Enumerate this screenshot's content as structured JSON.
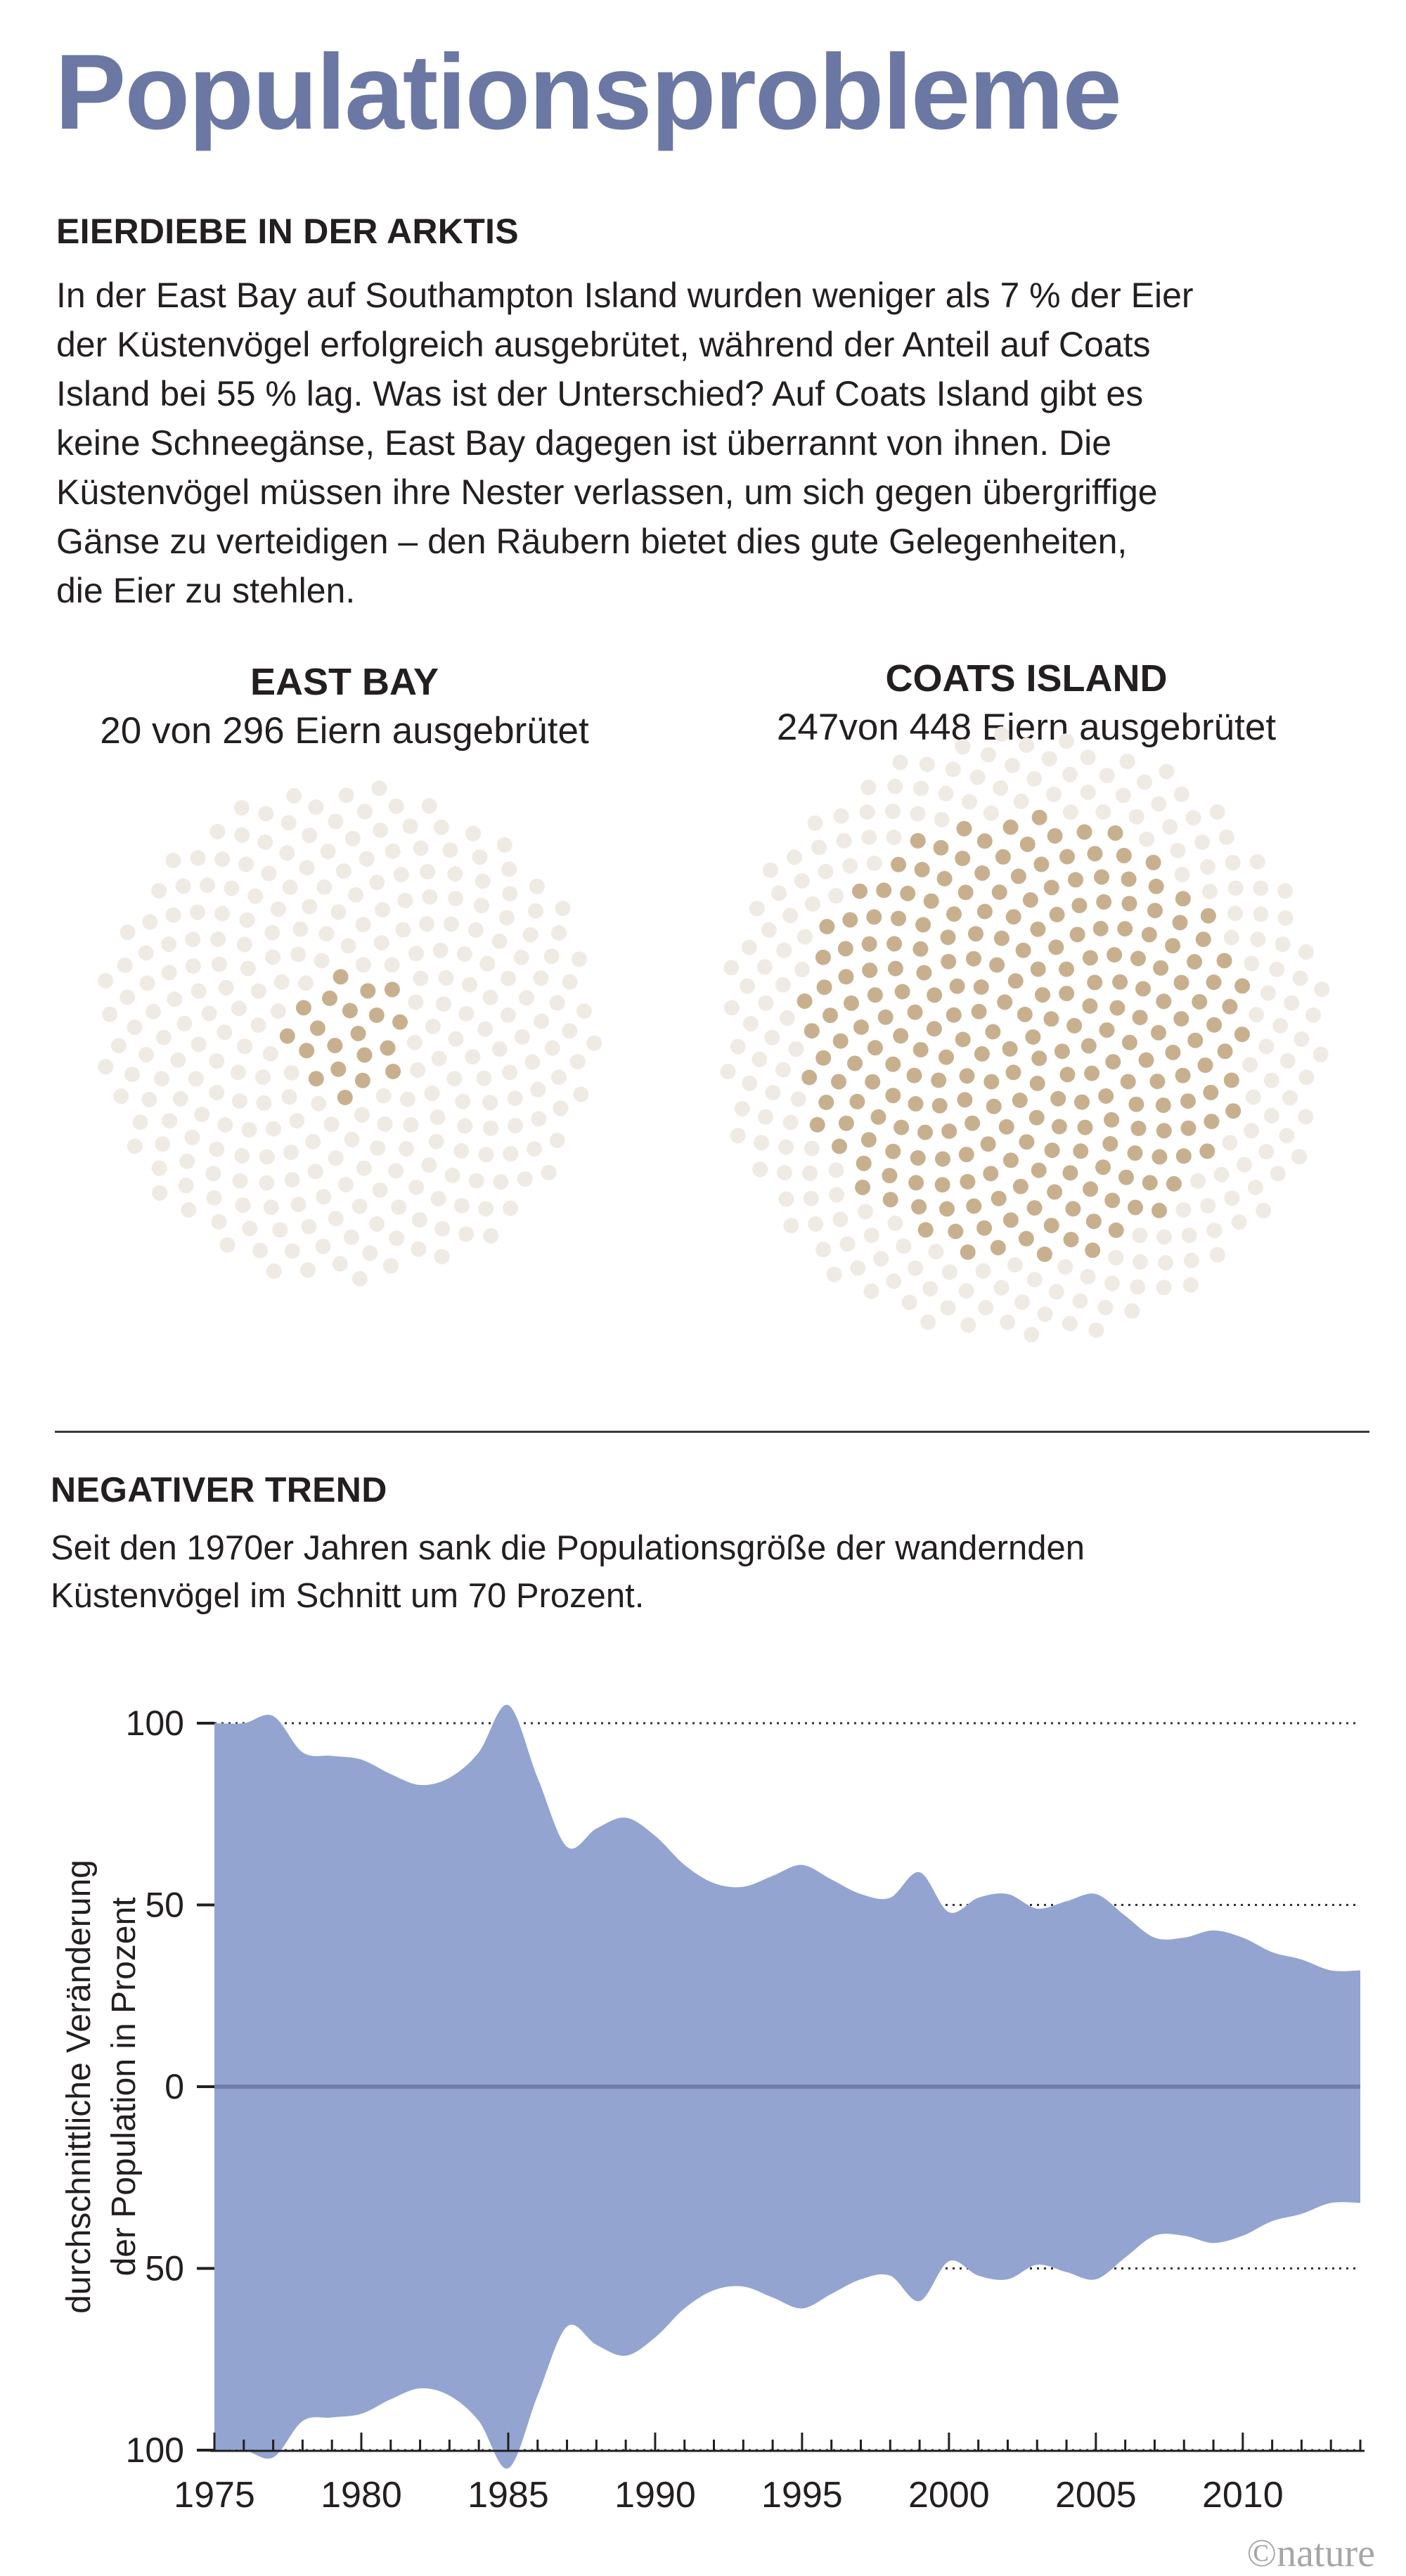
{
  "title": "Populationsprobleme",
  "section1": {
    "heading": "EIERDIEBE IN DER ARKTIS",
    "lines": [
      "In der East Bay auf Southampton Island wurden weniger als 7 % der Eier",
      "der Küstenvögel erfolgreich ausgebrütet, während der Anteil auf Coats",
      "Island bei 55 % lag. Was ist der Unterschied? Auf Coats Island gibt es",
      "keine Schneegänse, East Bay dagegen ist überrannt von ihnen. Die",
      "Küstenvögel müssen ihre Nester verlassen, um sich gegen übergriffige",
      "Gänse zu verteidigen – den Räubern bietet dies gute Gelegenheiten,",
      "die Eier zu stehlen."
    ]
  },
  "east_bay": {
    "name": "EAST BAY",
    "subtitle": "20 von 296 Eiern ausgebrütet",
    "hatched": 20,
    "total": 296
  },
  "coats_island": {
    "name": "COATS ISLAND",
    "subtitle": "247von 448 Eiern ausgebrütet",
    "hatched": 247,
    "total": 448
  },
  "section2": {
    "heading": "NEGATIVER TREND",
    "lines": [
      "Seit den 1970er Jahren sank die Populationsgröße der wandernden",
      "Küstenvögel im Schnitt um 70 Prozent."
    ]
  },
  "colors": {
    "hatched": "#c8b08f",
    "unhatched": "#efebe4",
    "area": "#93a4d1",
    "zero_line": "#6f7ea9",
    "title": "#6b78a3"
  },
  "chart_data": {
    "type": "area",
    "ylabel_lines": [
      "durchschnittliche Veränderung",
      "der Population in Prozent"
    ],
    "x": [
      1975,
      1976,
      1977,
      1978,
      1979,
      1980,
      1981,
      1982,
      1983,
      1984,
      1985,
      1986,
      1987,
      1988,
      1989,
      1990,
      1991,
      1992,
      1993,
      1994,
      1995,
      1996,
      1997,
      1998,
      1999,
      2000,
      2001,
      2002,
      2003,
      2004,
      2005,
      2006,
      2007,
      2008,
      2009,
      2010,
      2011,
      2012,
      2013,
      2014
    ],
    "values": [
      100,
      100,
      102,
      92,
      91,
      90,
      86,
      83,
      85,
      92,
      105,
      85,
      66,
      71,
      74,
      69,
      61,
      56,
      55,
      58,
      61,
      57,
      53,
      52,
      59,
      48,
      52,
      53,
      49,
      51,
      53,
      47,
      41,
      41,
      43,
      41,
      37,
      35,
      32,
      32
    ],
    "ylim": [
      -100,
      100
    ],
    "yticks": [
      100,
      50,
      0,
      50,
      100
    ],
    "xticks": [
      1975,
      1980,
      1985,
      1990,
      1995,
      2000,
      2005,
      2010
    ],
    "grid": true
  },
  "credit": "©nature"
}
